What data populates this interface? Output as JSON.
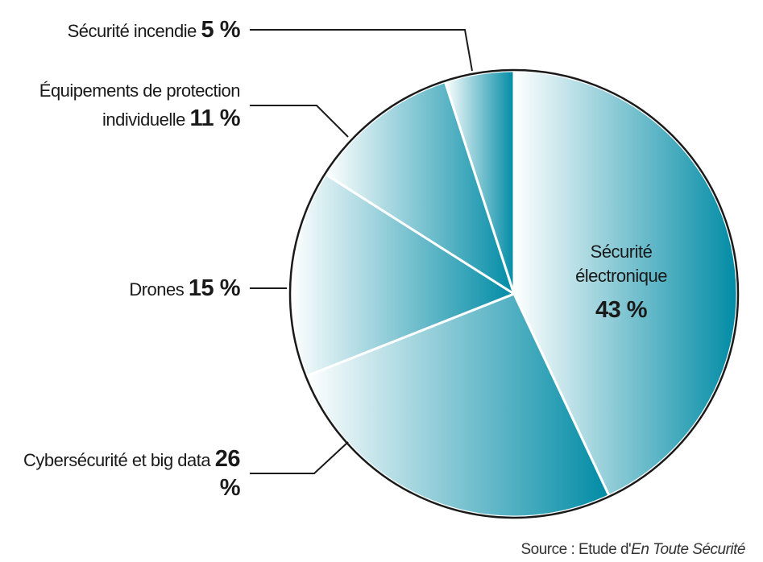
{
  "chart_data": {
    "type": "pie",
    "categories": [
      "Sécurité électronique",
      "Cybersécurité et big data",
      "Drones",
      "Équipements de protection individuelle",
      "Sécurité incendie"
    ],
    "values": [
      43,
      26,
      15,
      11,
      5
    ],
    "value_labels": [
      "43 %",
      "26 %",
      "15 %",
      "11 %",
      "5 %"
    ],
    "color": "#008ba5",
    "source": {
      "prefix": "Source : Etude d'",
      "title": "En Toute Sécurité"
    }
  }
}
